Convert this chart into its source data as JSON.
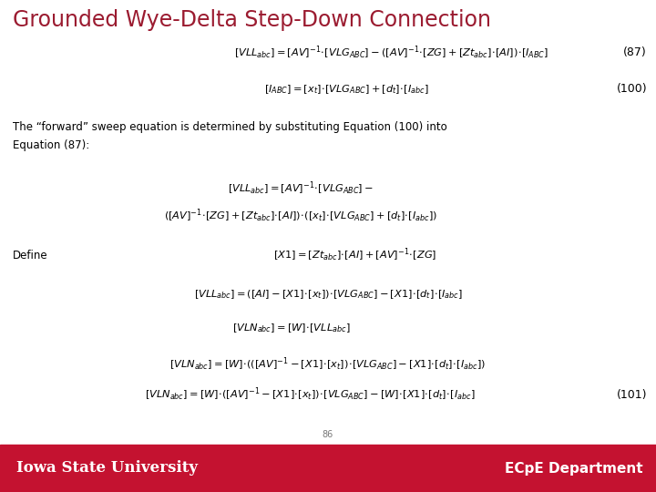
{
  "title": "Grounded Wye-Delta Step-Down Connection",
  "title_color": "#9B1B30",
  "bg_color": "#FFFFFF",
  "footer_bg_color": "#C41230",
  "footer_left": "Iowa State University",
  "footer_right": "ECpE Department",
  "footer_text_color": "#FFFFFF",
  "page_number": "86",
  "eq87_label": "(87)",
  "eq100_label": "(100)",
  "eq101_label": "(101)",
  "define_label": "Define",
  "desc_line1": "The “forward” sweep equation is determined by substituting Equation (100) into",
  "desc_line2": "Equation (87):"
}
